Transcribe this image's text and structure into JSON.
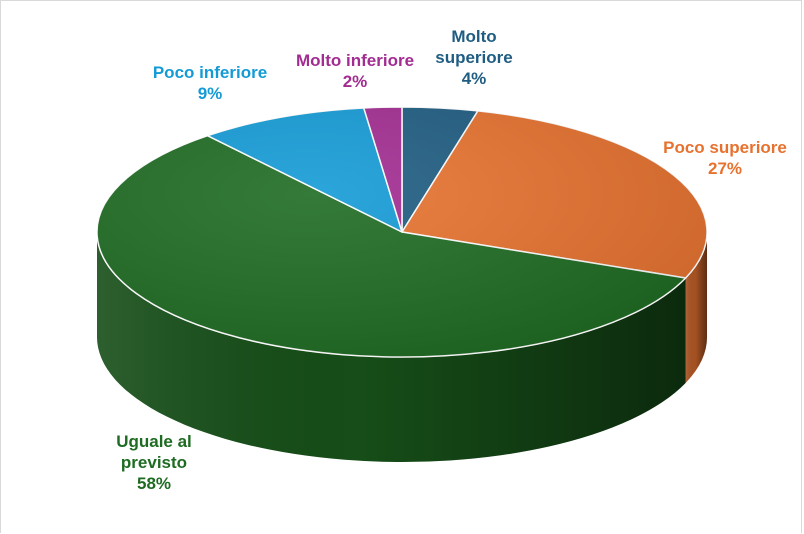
{
  "chart_data": {
    "type": "pie",
    "title": "",
    "slices": [
      {
        "label_lines": [
          "Molto",
          "superiore"
        ],
        "pct_text": "4%",
        "value": 4,
        "color": "#1f5d82",
        "label_color": "#1f5d82"
      },
      {
        "label_lines": [
          "Poco superiore"
        ],
        "pct_text": "27%",
        "value": 27,
        "color": "#e7722f",
        "label_color": "#e7722f"
      },
      {
        "label_lines": [
          "Uguale al",
          "previsto"
        ],
        "pct_text": "58%",
        "value": 58,
        "color": "#1e6b22",
        "label_color": "#1e6b22"
      },
      {
        "label_lines": [
          "Poco inferiore"
        ],
        "pct_text": "9%",
        "value": 9,
        "color": "#149bd6",
        "label_color": "#149bd6"
      },
      {
        "label_lines": [
          "Molto inferiore"
        ],
        "pct_text": "2%",
        "value": 2,
        "color": "#a22c91",
        "label_color": "#a22c91"
      }
    ]
  }
}
